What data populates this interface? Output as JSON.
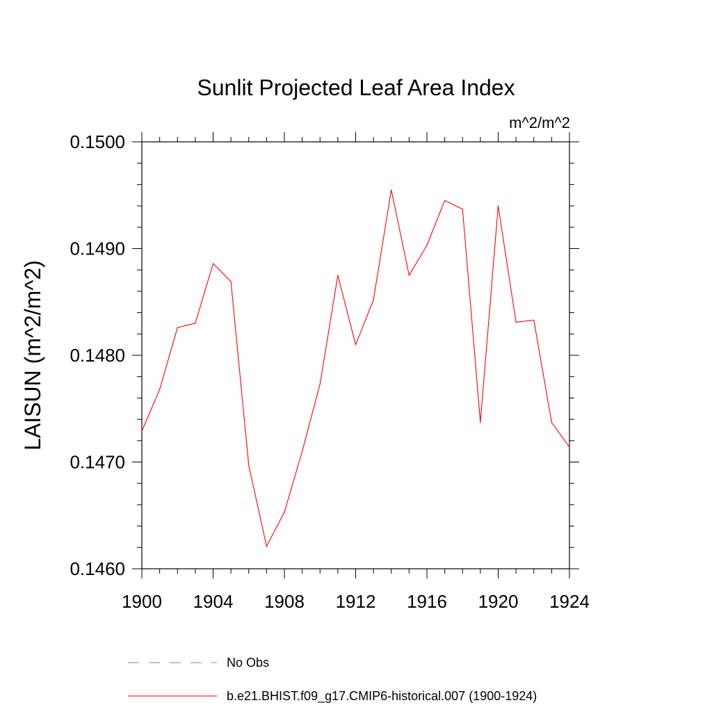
{
  "chart_data": {
    "type": "line",
    "title": "Sunlit Projected Leaf Area Index",
    "units_label": "m^2/m^2",
    "ylabel": "LAISUN  (m^2/m^2)",
    "xlabel": "",
    "xlim": [
      1900,
      1924
    ],
    "ylim": [
      0.146,
      0.15
    ],
    "x_ticks": [
      1900,
      1904,
      1908,
      1912,
      1916,
      1920,
      1924
    ],
    "x_tick_labels": [
      "1900",
      "1904",
      "1908",
      "1912",
      "1916",
      "1920",
      "1924"
    ],
    "y_ticks": [
      0.146,
      0.147,
      0.148,
      0.149,
      0.15
    ],
    "y_tick_labels": [
      "0.1460",
      "0.1470",
      "0.1480",
      "0.1490",
      "0.1500"
    ],
    "x_minor_step": 1,
    "y_minor_step": 0.0002,
    "grid": false,
    "legend_position": "bottom",
    "series": [
      {
        "name": "b.e21.BHIST.f09_g17.CMIP6-historical.007 (1900-1924)",
        "color": "#ff0000",
        "style": "solid",
        "x": [
          1900,
          1901,
          1902,
          1903,
          1904,
          1905,
          1906,
          1907,
          1908,
          1909,
          1910,
          1911,
          1912,
          1913,
          1914,
          1915,
          1916,
          1917,
          1918,
          1919,
          1920,
          1921,
          1922,
          1923,
          1924
        ],
        "values": [
          0.14729,
          0.14768,
          0.14826,
          0.1483,
          0.14886,
          0.14869,
          0.14697,
          0.14621,
          0.14653,
          0.1471,
          0.14773,
          0.14875,
          0.1481,
          0.14852,
          0.14955,
          0.14875,
          0.14903,
          0.14945,
          0.14937,
          0.14737,
          0.1494,
          0.14831,
          0.14833,
          0.14737,
          0.14714
        ]
      }
    ],
    "legend": [
      {
        "label": "No Obs",
        "color": "#8080c0",
        "style": "dashed"
      },
      {
        "label": "b.e21.BHIST.f09_g17.CMIP6-historical.007 (1900-1924)",
        "color": "#ff0000",
        "style": "solid"
      }
    ]
  }
}
